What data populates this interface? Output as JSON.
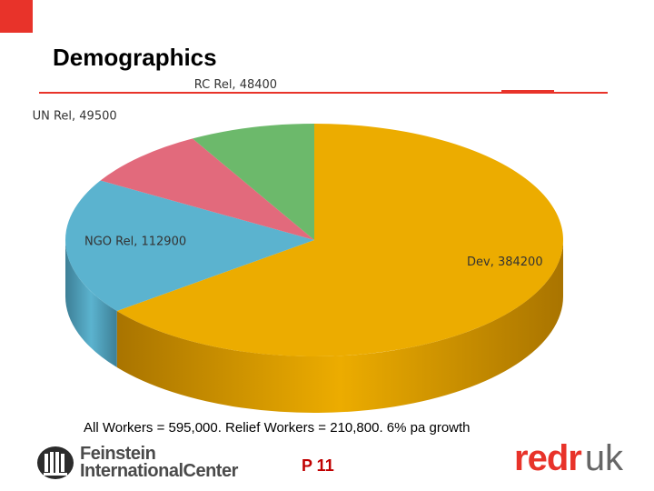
{
  "slide": {
    "title": "Demographics",
    "caption": "All Workers = 595,000.  Relief  Workers = 210,800. 6% pa growth",
    "page_number": "P 11",
    "accent_color": "#e8332a"
  },
  "logos": {
    "feinstein_line1": "Feinstein",
    "feinstein_line2": "InternationalCenter",
    "redr_red": "redr",
    "redr_uk": "uk"
  },
  "chart_data": {
    "type": "pie",
    "style": "3d",
    "title": "",
    "slices": [
      {
        "label": "Dev",
        "value": 384200,
        "display": "Dev, 384200",
        "color": "#ecac00",
        "side_color": "#a97400"
      },
      {
        "label": "NGO Rel",
        "value": 112900,
        "display": "NGO Rel, 112900",
        "color": "#5bb3cf",
        "side_color": "#3d7f96"
      },
      {
        "label": "UN Rel",
        "value": 49500,
        "display": "UN Rel, 49500",
        "color": "#e26a7c",
        "side_color": "#a04a57"
      },
      {
        "label": "RC Rel",
        "value": 48400,
        "display": "RC Rel, 48400",
        "color": "#6cb96b",
        "side_color": "#4a8a4a"
      }
    ],
    "legend": "none",
    "data_labels": "outside-and-inside"
  }
}
